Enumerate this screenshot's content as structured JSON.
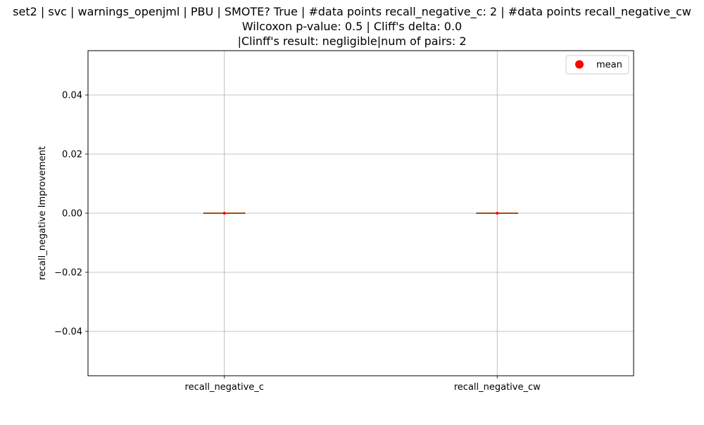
{
  "chart_data": {
    "type": "box",
    "title_lines": [
      "set2 | svc | warnings_openjml | PBU | SMOTE? True | #data points recall_negative_c: 2 | #data points recall_negative_cw",
      "Wilcoxon p-value: 0.5 | Cliff's delta: 0.0",
      "|Clinff's result: negligible|num of pairs: 2"
    ],
    "xlabel": "",
    "ylabel": "recall_negative Improvement",
    "categories": [
      "recall_negative_c",
      "recall_negative_cw"
    ],
    "series": [
      {
        "category": "recall_negative_c",
        "min": 0.0,
        "q1": 0.0,
        "median": 0.0,
        "q3": 0.0,
        "max": 0.0,
        "mean": 0.0
      },
      {
        "category": "recall_negative_cw",
        "min": 0.0,
        "q1": 0.0,
        "median": 0.0,
        "q3": 0.0,
        "max": 0.0,
        "mean": 0.0
      }
    ],
    "ylim": [
      -0.055,
      0.055
    ],
    "yticks": [
      -0.04,
      -0.02,
      0.0,
      0.02,
      0.04
    ],
    "ytick_labels": [
      "−0.04",
      "−0.02",
      "0.00",
      "0.02",
      "0.04"
    ],
    "grid": true,
    "legend": {
      "position": "upper-right",
      "entries": [
        {
          "label": "mean",
          "marker": "circle"
        }
      ]
    },
    "colors": {
      "mean_marker": "#ff0000",
      "median_line": "#ff7f0e",
      "box_edge": "#000000",
      "grid": "#b0b0b0"
    }
  }
}
